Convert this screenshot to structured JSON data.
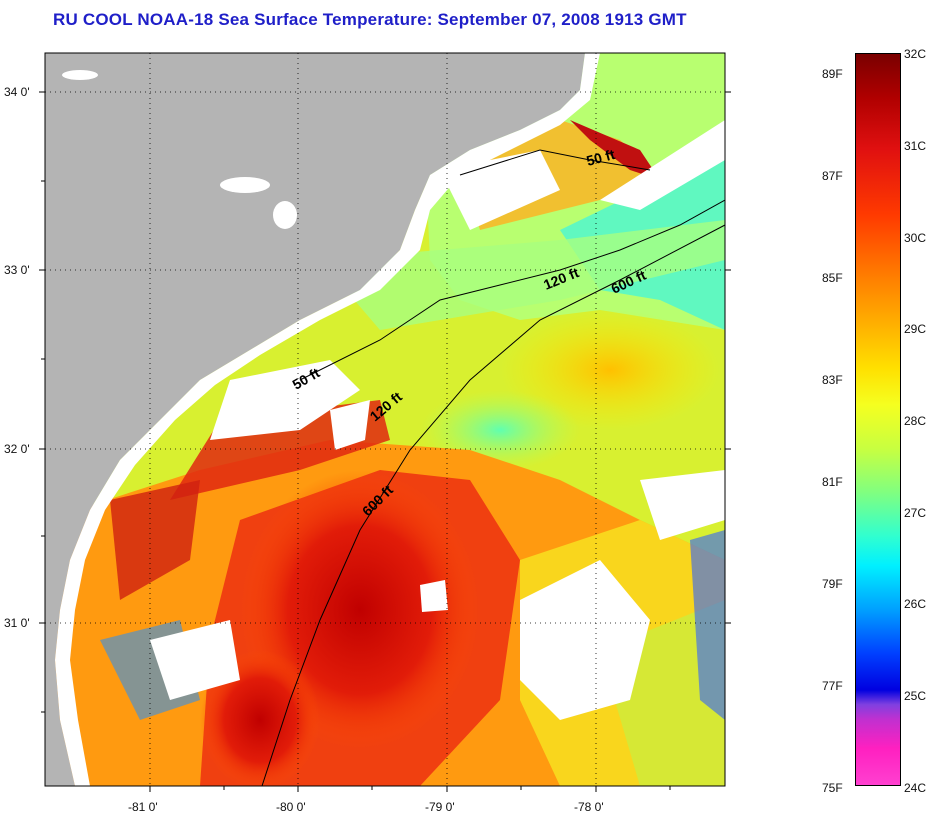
{
  "header": {
    "title": "RU COOL  NOAA-18  Sea Surface Temperature:  September 07, 2008 1913 GMT"
  },
  "map": {
    "lat_labels": [
      "34 0'",
      "33 0'",
      "32 0'",
      "31 0'"
    ],
    "lon_labels": [
      "-81 0'",
      "-80 0'",
      "-79 0'",
      "-78 0'"
    ],
    "isobath_labels": [
      "50 ft",
      "120 ft",
      "600 ft",
      "50 ft",
      "120 ft",
      "600 ft"
    ]
  },
  "colorbar": {
    "fahrenheit": [
      "89F",
      "87F",
      "85F",
      "83F",
      "81F",
      "79F",
      "77F",
      "75F"
    ],
    "celsius": [
      "32C",
      "31C",
      "30C",
      "29C",
      "28C",
      "27C",
      "26C",
      "25C",
      "24C"
    ]
  },
  "colors": {
    "title": "#1f1fc8",
    "land": "#b4b4b4",
    "cloud": "#ffffff"
  }
}
